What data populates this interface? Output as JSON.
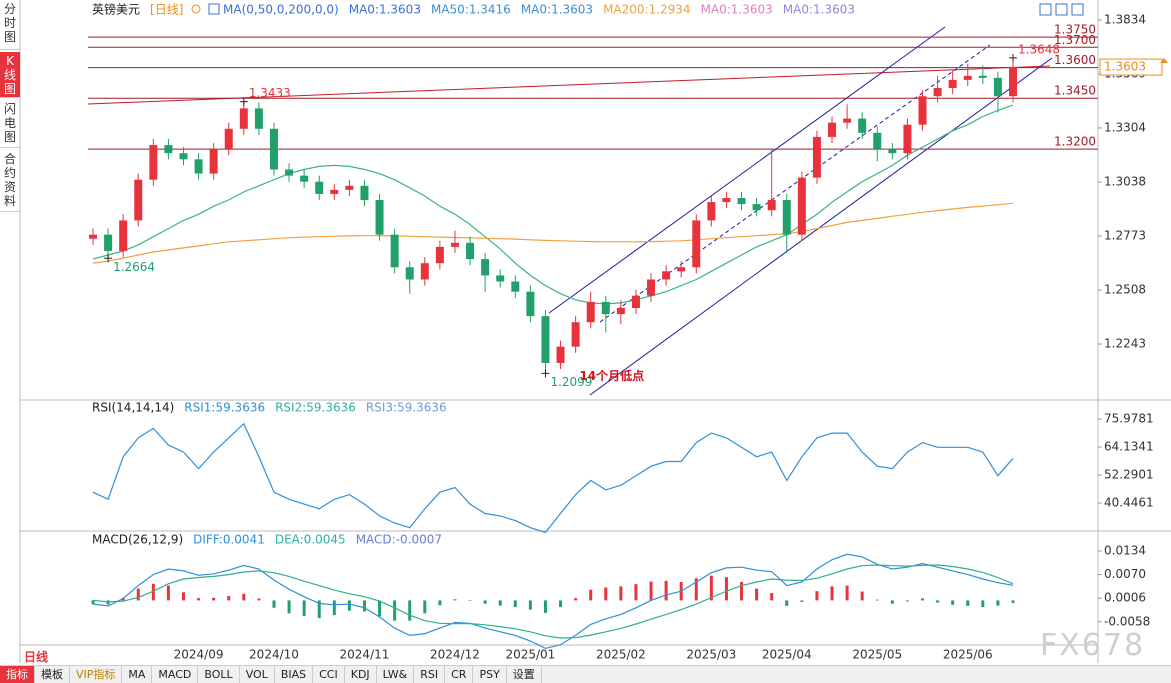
{
  "sidebar": [
    "分时图",
    "K线图",
    "闪电图",
    "合约资料"
  ],
  "header": {
    "symbol": "英镑美元",
    "period": "[日线]",
    "ma_params": "MA(0,50,0,200,0,0)"
  },
  "period_label": "日线",
  "watermark": "FX678",
  "toolbar": [
    "指标",
    "模板",
    "VIP指标",
    "MA",
    "MACD",
    "BOLL",
    "VOL",
    "BIAS",
    "CCI",
    "KDJ",
    "LW&",
    "RSI",
    "CR",
    "PSY",
    "设置"
  ],
  "chart_data": [
    {
      "type": "candlestick",
      "legend": [
        {
          "label": "MA0:1.3603",
          "color": "#3b6fd6"
        },
        {
          "label": "MA50:1.3416",
          "color": "#3b8fd6"
        },
        {
          "label": "MA0:1.3603",
          "color": "#3b8fd6"
        },
        {
          "label": "MA200:1.2934",
          "color": "#f0a040"
        },
        {
          "label": "MA0:1.3603",
          "color": "#e080c0"
        },
        {
          "label": "MA0:1.3603",
          "color": "#9a80e0"
        }
      ],
      "categories": [
        null,
        null,
        null,
        null,
        null,
        null,
        null,
        "2024/09",
        null,
        null,
        null,
        null,
        "2024/10",
        null,
        null,
        null,
        null,
        null,
        "2024/11",
        null,
        null,
        null,
        null,
        null,
        "2024/12",
        null,
        null,
        null,
        null,
        "2025/01",
        null,
        null,
        null,
        null,
        null,
        "2025/02",
        null,
        null,
        null,
        null,
        null,
        "2025/03",
        null,
        null,
        null,
        null,
        "2025/04",
        null,
        null,
        null,
        null,
        null,
        "2025/05",
        null,
        null,
        null,
        null,
        null,
        "2025/06",
        null,
        null,
        null
      ],
      "open": [
        1.276,
        1.278,
        1.27,
        1.285,
        1.305,
        1.322,
        1.318,
        1.315,
        1.308,
        1.32,
        1.33,
        1.34,
        1.33,
        1.31,
        1.307,
        1.304,
        1.298,
        1.3,
        1.302,
        1.295,
        1.278,
        1.262,
        1.256,
        1.264,
        1.272,
        1.274,
        1.266,
        1.258,
        1.255,
        1.25,
        1.238,
        1.215,
        1.223,
        1.235,
        1.245,
        1.239,
        1.242,
        1.248,
        1.256,
        1.26,
        1.262,
        1.285,
        1.294,
        1.296,
        1.293,
        1.29,
        1.295,
        1.278,
        1.306,
        1.326,
        1.333,
        1.335,
        1.328,
        1.32,
        1.318,
        1.332,
        1.346,
        1.35,
        1.354,
        1.356,
        1.355,
        1.346
      ],
      "high": [
        1.281,
        1.281,
        1.288,
        1.308,
        1.325,
        1.325,
        1.321,
        1.318,
        1.323,
        1.333,
        1.3433,
        1.343,
        1.333,
        1.313,
        1.31,
        1.307,
        1.303,
        1.305,
        1.305,
        1.298,
        1.281,
        1.265,
        1.267,
        1.275,
        1.28,
        1.277,
        1.269,
        1.261,
        1.258,
        1.253,
        1.241,
        1.226,
        1.238,
        1.25,
        1.248,
        1.246,
        1.251,
        1.259,
        1.263,
        1.265,
        1.288,
        1.297,
        1.299,
        1.299,
        1.296,
        1.32,
        1.298,
        1.309,
        1.329,
        1.336,
        1.342,
        1.338,
        1.331,
        1.323,
        1.335,
        1.349,
        1.356,
        1.359,
        1.362,
        1.361,
        1.358,
        1.3648
      ],
      "low": [
        1.273,
        1.2664,
        1.267,
        1.282,
        1.302,
        1.315,
        1.312,
        1.305,
        1.305,
        1.317,
        1.327,
        1.327,
        1.307,
        1.304,
        1.301,
        1.295,
        1.295,
        1.297,
        1.292,
        1.275,
        1.259,
        1.249,
        1.253,
        1.261,
        1.269,
        1.263,
        1.25,
        1.252,
        1.247,
        1.235,
        1.2099,
        1.212,
        1.22,
        1.232,
        1.23,
        1.234,
        1.239,
        1.245,
        1.253,
        1.257,
        1.259,
        1.282,
        1.291,
        1.29,
        1.287,
        1.287,
        1.269,
        1.275,
        1.303,
        1.323,
        1.33,
        1.325,
        1.314,
        1.315,
        1.315,
        1.329,
        1.343,
        1.347,
        1.351,
        1.352,
        1.338,
        1.343
      ],
      "close": [
        1.278,
        1.27,
        1.285,
        1.305,
        1.322,
        1.318,
        1.315,
        1.308,
        1.32,
        1.33,
        1.34,
        1.33,
        1.31,
        1.307,
        1.304,
        1.298,
        1.3,
        1.302,
        1.295,
        1.278,
        1.262,
        1.256,
        1.264,
        1.272,
        1.274,
        1.266,
        1.258,
        1.255,
        1.25,
        1.238,
        1.215,
        1.223,
        1.235,
        1.245,
        1.239,
        1.242,
        1.248,
        1.256,
        1.26,
        1.262,
        1.285,
        1.294,
        1.296,
        1.293,
        1.29,
        1.295,
        1.278,
        1.306,
        1.326,
        1.333,
        1.335,
        1.328,
        1.32,
        1.318,
        1.332,
        1.346,
        1.35,
        1.354,
        1.356,
        1.355,
        1.346,
        1.3603
      ],
      "up_color": "#e8333d",
      "down_color": "#22a06b",
      "series": [
        {
          "color": "#3bb38a",
          "values": [
            1.266,
            1.268,
            1.27,
            1.273,
            1.277,
            1.281,
            1.285,
            1.288,
            1.292,
            1.295,
            1.299,
            1.302,
            1.305,
            1.308,
            1.31,
            1.3115,
            1.312,
            1.3115,
            1.31,
            1.308,
            1.305,
            1.301,
            1.297,
            1.292,
            1.288,
            1.283,
            1.277,
            1.271,
            1.264,
            1.258,
            1.253,
            1.249,
            1.246,
            1.2445,
            1.244,
            1.2445,
            1.246,
            1.248,
            1.25,
            1.253,
            1.256,
            1.26,
            1.264,
            1.268,
            1.272,
            1.275,
            1.278,
            1.283,
            1.288,
            1.294,
            1.299,
            1.304,
            1.308,
            1.312,
            1.317,
            1.321,
            1.325,
            1.329,
            1.332,
            1.336,
            1.339,
            1.3416
          ]
        },
        {
          "color": "#f0a040",
          "values": [
            1.264,
            1.265,
            1.2665,
            1.268,
            1.2695,
            1.2705,
            1.2715,
            1.2725,
            1.2735,
            1.2745,
            1.275,
            1.2755,
            1.276,
            1.2765,
            1.2768,
            1.277,
            1.2772,
            1.2774,
            1.2775,
            1.2775,
            1.2774,
            1.2772,
            1.277,
            1.2768,
            1.2766,
            1.2764,
            1.2762,
            1.276,
            1.2758,
            1.2755,
            1.2752,
            1.275,
            1.2748,
            1.2746,
            1.2745,
            1.2745,
            1.2745,
            1.2746,
            1.2748,
            1.275,
            1.2755,
            1.276,
            1.2765,
            1.277,
            1.2775,
            1.278,
            1.2785,
            1.2795,
            1.281,
            1.2825,
            1.284,
            1.285,
            1.286,
            1.287,
            1.288,
            1.289,
            1.2898,
            1.2906,
            1.2914,
            1.292,
            1.2927,
            1.2934
          ]
        }
      ],
      "ylim": [
        1.1978,
        1.3893
      ],
      "yticks": [
        1.3834,
        1.3569,
        1.3304,
        1.3038,
        1.2773,
        1.2508,
        1.2243
      ],
      "levels": [
        {
          "value": 1.375,
          "label": "1.3750"
        },
        {
          "value": 1.37,
          "label": "1.3700"
        },
        {
          "value": 1.36,
          "label": "1.3600"
        },
        {
          "value": 1.345,
          "label": "1.3450"
        },
        {
          "value": 1.32,
          "label": "1.3200"
        }
      ],
      "level_color": "#a01c28",
      "markers": [
        {
          "value": 1.3433,
          "label": "1.3433",
          "color": "#e8333d"
        },
        {
          "value": 1.2664,
          "label": "1.2664",
          "color": "#22a06b"
        },
        {
          "value": 1.2099,
          "label": "1.2099",
          "color": "#22a06b",
          "note": "14个月低点"
        },
        {
          "value": 1.3648,
          "label": "1.3648",
          "color": "#e8333d"
        }
      ],
      "current_price": {
        "value": 1.3603,
        "label": "1.3603",
        "color": "#f08a1c"
      }
    },
    {
      "type": "line",
      "title": "RSI(14,14,14)",
      "legend": [
        {
          "label": "RSI1:59.3636",
          "color": "#2f8fd8"
        },
        {
          "label": "RSI2:59.3636",
          "color": "#2fb0a0"
        },
        {
          "label": "RSI3:59.3636",
          "color": "#6a9ae0"
        }
      ],
      "series": [
        {
          "color": "#2f8fd8",
          "values": [
            45,
            42,
            60,
            68,
            72,
            65,
            62,
            55,
            62,
            68,
            74,
            60,
            45,
            42,
            40,
            38,
            42,
            44,
            40,
            35,
            32,
            30,
            38,
            45,
            47,
            40,
            36,
            35,
            33,
            30,
            28,
            36,
            44,
            50,
            46,
            48,
            52,
            56,
            58,
            58,
            66,
            70,
            68,
            64,
            60,
            62,
            50,
            60,
            68,
            70,
            70,
            62,
            56,
            55,
            62,
            66,
            64,
            64,
            64,
            62,
            52,
            59.3636
          ]
        }
      ],
      "ylim": [
        29.03,
        83.17
      ],
      "yticks": [
        75.9781,
        64.1341,
        52.2901,
        40.4461
      ]
    },
    {
      "type": "macd",
      "title": "MACD(26,12,9)",
      "legend": [
        {
          "label": "DIFF:0.0041",
          "color": "#2f8fd8"
        },
        {
          "label": "DEA:0.0045",
          "color": "#2fb0a0"
        },
        {
          "label": "MACD:-0.0007",
          "color": "#6a7ad8"
        }
      ],
      "series": [
        {
          "color": "#2f8fd8",
          "values": [
            -0.001,
            -0.0015,
            0.0005,
            0.004,
            0.007,
            0.0085,
            0.008,
            0.0068,
            0.0072,
            0.0082,
            0.0095,
            0.0085,
            0.0055,
            0.003,
            0.001,
            -0.0008,
            -0.0012,
            -0.001,
            -0.002,
            -0.0045,
            -0.0075,
            -0.0095,
            -0.009,
            -0.0075,
            -0.006,
            -0.0062,
            -0.0075,
            -0.0085,
            -0.0095,
            -0.011,
            -0.013,
            -0.012,
            -0.0095,
            -0.0065,
            -0.005,
            -0.0038,
            -0.002,
            0.0,
            0.0015,
            0.0025,
            0.005,
            0.0075,
            0.0088,
            0.009,
            0.0082,
            0.0078,
            0.004,
            0.005,
            0.0085,
            0.011,
            0.0125,
            0.0118,
            0.0098,
            0.0085,
            0.009,
            0.01,
            0.009,
            0.008,
            0.007,
            0.0058,
            0.0048,
            0.0041
          ]
        },
        {
          "color": "#2fb08a",
          "values": [
            0.0,
            -0.0004,
            -0.0002,
            0.0008,
            0.0025,
            0.0045,
            0.0058,
            0.0062,
            0.0065,
            0.007,
            0.0077,
            0.008,
            0.0075,
            0.0065,
            0.0052,
            0.004,
            0.0028,
            0.0018,
            0.001,
            -0.0002,
            -0.002,
            -0.004,
            -0.0055,
            -0.0062,
            -0.0063,
            -0.0063,
            -0.0066,
            -0.0071,
            -0.0077,
            -0.0085,
            -0.0096,
            -0.0102,
            -0.0101,
            -0.0094,
            -0.0085,
            -0.0076,
            -0.0064,
            -0.0051,
            -0.0038,
            -0.0025,
            -0.001,
            0.0008,
            0.0025,
            0.004,
            0.005,
            0.0058,
            0.0055,
            0.0054,
            0.006,
            0.0072,
            0.0085,
            0.0094,
            0.0096,
            0.0094,
            0.0093,
            0.0095,
            0.0096,
            0.0092,
            0.0085,
            0.0076,
            0.0062,
            0.0045
          ]
        }
      ],
      "histogram": {
        "up_color": "#e8333d",
        "down_color": "#22a06b",
        "values": [
          -0.001,
          -0.0011,
          0.0007,
          0.0032,
          0.0045,
          0.004,
          0.0022,
          0.0006,
          0.0007,
          0.0012,
          0.0018,
          0.0005,
          -0.002,
          -0.0035,
          -0.0042,
          -0.0048,
          -0.004,
          -0.0028,
          -0.003,
          -0.0043,
          -0.0055,
          -0.0055,
          -0.0035,
          -0.0013,
          0.0003,
          0.0001,
          -0.0009,
          -0.0014,
          -0.0018,
          -0.0025,
          -0.0034,
          -0.0018,
          0.0006,
          0.0029,
          0.0035,
          0.0038,
          0.0044,
          0.0051,
          0.0053,
          0.005,
          0.006,
          0.0067,
          0.0063,
          0.005,
          0.0032,
          0.002,
          -0.0015,
          -0.0004,
          0.0025,
          0.0038,
          0.004,
          0.0024,
          0.0002,
          -0.0009,
          -0.0003,
          0.0005,
          -0.0006,
          -0.0012,
          -0.0015,
          -0.0018,
          -0.0014,
          -0.0007
        ]
      },
      "ylim": [
        -0.0148,
        0.018
      ],
      "yticks": [
        0.0134,
        {
          "value": 0.007,
          "label": "0.0070"
        },
        0.0006,
        -0.0058
      ]
    }
  ]
}
